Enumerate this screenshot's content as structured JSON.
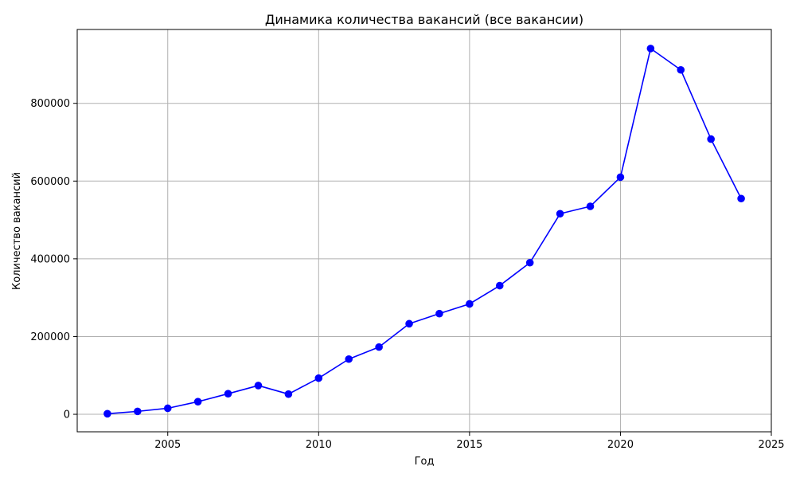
{
  "chart_data": {
    "type": "line",
    "title": "Динамика количества вакансий (все вакансии)",
    "xlabel": "Год",
    "ylabel": "Количество вакансий",
    "xlim": [
      2002,
      2025
    ],
    "ylim": [
      -45000,
      990000
    ],
    "xticks": [
      2005,
      2010,
      2015,
      2020,
      2025
    ],
    "yticks": [
      0,
      200000,
      400000,
      600000,
      800000
    ],
    "grid": true,
    "series": [
      {
        "name": "Количество вакансий",
        "color": "#0000ff",
        "marker": "circle",
        "x": [
          2003,
          2004,
          2005,
          2006,
          2007,
          2008,
          2009,
          2010,
          2011,
          2012,
          2013,
          2014,
          2015,
          2016,
          2017,
          2018,
          2019,
          2020,
          2021,
          2022,
          2023,
          2024
        ],
        "values": [
          1500,
          7500,
          15500,
          32500,
          53000,
          74000,
          52000,
          93000,
          142000,
          173000,
          233000,
          259000,
          284000,
          331000,
          390000,
          516000,
          535000,
          610000,
          941000,
          886000,
          708000,
          555000
        ]
      }
    ]
  }
}
